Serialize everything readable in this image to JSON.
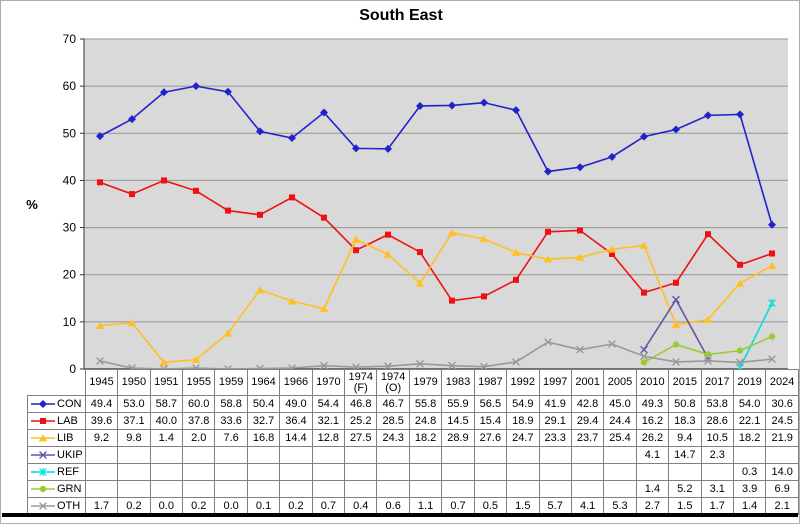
{
  "window": {
    "bg": "#ffffff",
    "frame_border": "#adadad",
    "bottom_rule_color": "#000000"
  },
  "chart_data": {
    "type": "line",
    "title": "South East",
    "ylabel": "%",
    "ylim": [
      0,
      70
    ],
    "ytick_step": 10,
    "grid": true,
    "legend_position": "table-left-column",
    "plot_bg": "#d9d9d9",
    "grid_color": "#969696",
    "axis_color": "#333333",
    "table_border_color": "#808080",
    "categories": [
      "1945",
      "1950",
      "1951",
      "1955",
      "1959",
      "1964",
      "1966",
      "1970",
      "1974 (F)",
      "1974 (O)",
      "1979",
      "1983",
      "1987",
      "1992",
      "1997",
      "2001",
      "2005",
      "2010",
      "2015",
      "2017",
      "2019",
      "2024"
    ],
    "series": [
      {
        "name": "CON",
        "color": "#2222cc",
        "marker": "diamond",
        "values": [
          "49.4",
          "53.0",
          "58.7",
          "60.0",
          "58.8",
          "50.4",
          "49.0",
          "54.4",
          "46.8",
          "46.7",
          "55.8",
          "55.9",
          "56.5",
          "54.9",
          "41.9",
          "42.8",
          "45.0",
          "49.3",
          "50.8",
          "53.8",
          "54.0",
          "30.6"
        ]
      },
      {
        "name": "LAB",
        "color": "#ee1111",
        "marker": "square",
        "values": [
          "39.6",
          "37.1",
          "40.0",
          "37.8",
          "33.6",
          "32.7",
          "36.4",
          "32.1",
          "25.2",
          "28.5",
          "24.8",
          "14.5",
          "15.4",
          "18.9",
          "29.1",
          "29.4",
          "24.4",
          "16.2",
          "18.3",
          "28.6",
          "22.1",
          "24.5"
        ]
      },
      {
        "name": "LIB",
        "color": "#ffc020",
        "marker": "triangle",
        "values": [
          "9.2",
          "9.8",
          "1.4",
          "2.0",
          "7.6",
          "16.8",
          "14.4",
          "12.8",
          "27.5",
          "24.3",
          "18.2",
          "28.9",
          "27.6",
          "24.7",
          "23.3",
          "23.7",
          "25.4",
          "26.2",
          "9.4",
          "10.5",
          "18.2",
          "21.9"
        ]
      },
      {
        "name": "UKIP",
        "color": "#6355a4",
        "marker": "x",
        "values": [
          "",
          "",
          "",
          "",
          "",
          "",
          "",
          "",
          "",
          "",
          "",
          "",
          "",
          "",
          "",
          "",
          "",
          "4.1",
          "14.7",
          "2.3",
          "",
          ""
        ]
      },
      {
        "name": "REF",
        "color": "#00dede",
        "marker": "asterisk",
        "values": [
          "",
          "",
          "",
          "",
          "",
          "",
          "",
          "",
          "",
          "",
          "",
          "",
          "",
          "",
          "",
          "",
          "",
          "",
          "",
          "",
          "0.3",
          "14.0"
        ]
      },
      {
        "name": "GRN",
        "color": "#99cc33",
        "marker": "circle",
        "values": [
          "",
          "",
          "",
          "",
          "",
          "",
          "",
          "",
          "",
          "",
          "",
          "",
          "",
          "",
          "",
          "",
          "",
          "1.4",
          "5.2",
          "3.1",
          "3.9",
          "6.9"
        ]
      },
      {
        "name": "OTH",
        "color": "#999999",
        "marker": "x",
        "values": [
          "1.7",
          "0.2",
          "0.0",
          "0.2",
          "0.0",
          "0.1",
          "0.2",
          "0.7",
          "0.4",
          "0.6",
          "1.1",
          "0.7",
          "0.5",
          "1.5",
          "5.7",
          "4.1",
          "5.3",
          "2.7",
          "1.5",
          "1.7",
          "1.4",
          "2.1"
        ]
      }
    ]
  }
}
